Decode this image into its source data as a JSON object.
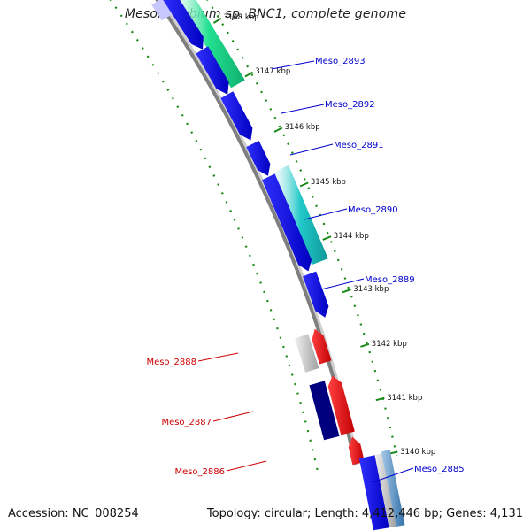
{
  "title": "Mesorhizobium sp. BNC1, complete genome",
  "footer": {
    "accession": "Accession: NC_008254",
    "summary": "Topology: circular; Length: 4,412,446 bp; Genes: 4,131"
  },
  "colors": {
    "backbone": "#7f7f7f",
    "forward_gene": "#0000ee",
    "forward_gene_dark": "#00007f",
    "reverse_gene": "#ee0000",
    "rna_feature": "#22e090",
    "cds_feature": "#22c8c8",
    "pseudo_feature": "#c8c8c8",
    "dotted_ring": "#1a8a1a",
    "label_forward": "#0000cc",
    "label_reverse": "#cc0000"
  },
  "scale": {
    "unit": "kbp",
    "ticks": [
      {
        "label": "3148 kbp"
      },
      {
        "label": "3147 kbp"
      },
      {
        "label": "3146 kbp"
      },
      {
        "label": "3145 kbp"
      },
      {
        "label": "3144 kbp"
      },
      {
        "label": "3143 kbp"
      },
      {
        "label": "3142 kbp"
      },
      {
        "label": "3141 kbp"
      },
      {
        "label": "3140 kbp"
      }
    ]
  },
  "genes": [
    {
      "name": "Meso_2893",
      "strand": "forward"
    },
    {
      "name": "Meso_2892",
      "strand": "forward"
    },
    {
      "name": "Meso_2891",
      "strand": "forward"
    },
    {
      "name": "Meso_2890",
      "strand": "forward"
    },
    {
      "name": "Meso_2889",
      "strand": "forward"
    },
    {
      "name": "Meso_2888",
      "strand": "reverse"
    },
    {
      "name": "Meso_2887",
      "strand": "reverse"
    },
    {
      "name": "Meso_2886",
      "strand": "reverse"
    },
    {
      "name": "Meso_2885",
      "strand": "forward"
    }
  ]
}
